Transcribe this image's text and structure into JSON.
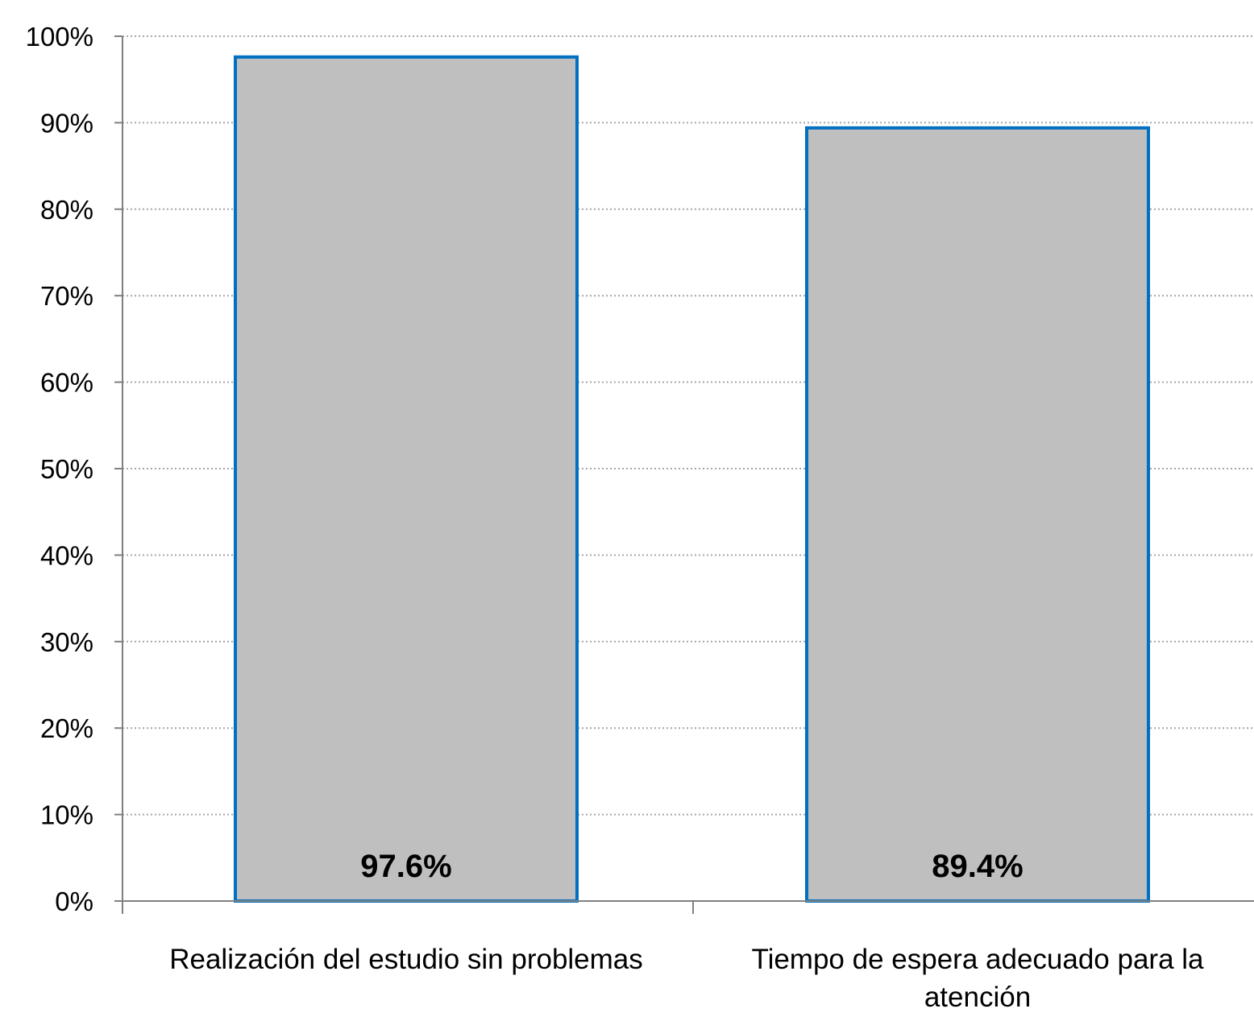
{
  "chart_data": {
    "type": "bar",
    "title": "",
    "xlabel": "",
    "ylabel": "",
    "categories": [
      [
        "Realización del estudio sin problemas"
      ],
      [
        "Tiempo de espera adecuado para la",
        "atención"
      ]
    ],
    "values": [
      97.6,
      89.4
    ],
    "data_labels": [
      "97.6%",
      "89.4%"
    ],
    "ylim": [
      0,
      100
    ],
    "yticks": [
      0,
      10,
      20,
      30,
      40,
      50,
      60,
      70,
      80,
      90,
      100
    ],
    "ytick_labels": [
      "0%",
      "10%",
      "20%",
      "30%",
      "40%",
      "50%",
      "60%",
      "70%",
      "80%",
      "90%",
      "100%"
    ],
    "grid": true,
    "grid_style": "dotted",
    "legend": "none",
    "colors": {
      "bar_fill": "#bfbfbf",
      "bar_border": "#0070c0",
      "grid": "#a6a6a6",
      "axis": "#808080"
    }
  }
}
